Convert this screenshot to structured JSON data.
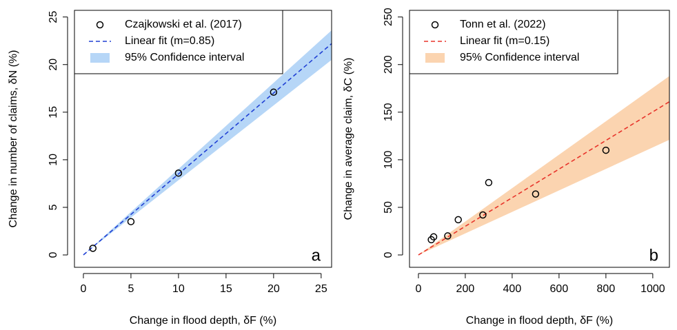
{
  "chart_data": [
    {
      "type": "scatter",
      "panel_label": "a",
      "x_label": "Change in flood depth, δF (%)",
      "y_label": "Change in number of claims, δN (%)",
      "xlim": [
        -0.94,
        26.1
      ],
      "ylim": [
        -1.3,
        25.7
      ],
      "xticks": [
        0,
        5,
        10,
        15,
        20,
        25
      ],
      "yticks": [
        0,
        5,
        10,
        15,
        20,
        25
      ],
      "legend": "top-left",
      "series": [
        {
          "name": "Czajkowski et al. (2017)",
          "style": "points",
          "color": "#000000",
          "x": [
            1,
            5,
            10,
            20
          ],
          "values": [
            0.7,
            3.5,
            8.6,
            17.1
          ]
        },
        {
          "name": "Linear fit (m=0.85)",
          "style": "dashed",
          "color": "#1f3fd4",
          "x": [
            0,
            26.1
          ],
          "values": [
            0,
            22.2
          ]
        },
        {
          "name": "95% Confidence interval",
          "style": "band",
          "color": "#b6d6f7",
          "x": [
            0,
            26.1
          ],
          "lower": [
            0,
            20.5
          ],
          "upper": [
            0,
            23.6
          ]
        }
      ]
    },
    {
      "type": "scatter",
      "panel_label": "b",
      "x_label": "Change in flood depth, δF (%)",
      "y_label": "Change in average claim, δC (%)",
      "xlim": [
        -38,
        1071
      ],
      "ylim": [
        -13,
        257
      ],
      "xticks": [
        0,
        200,
        400,
        600,
        800,
        1000
      ],
      "yticks": [
        0,
        50,
        100,
        150,
        200,
        250
      ],
      "legend": "top-left",
      "series": [
        {
          "name": "Tonn et al. (2022)",
          "style": "points",
          "color": "#000000",
          "x": [
            55,
            65,
            125,
            170,
            275,
            300,
            500,
            800
          ],
          "values": [
            16,
            19,
            20,
            37,
            42,
            76,
            64,
            110
          ]
        },
        {
          "name": "Linear fit (m=0.15)",
          "style": "dashed",
          "color": "#e8332a",
          "x": [
            0,
            1071
          ],
          "values": [
            0,
            161
          ]
        },
        {
          "name": "95% Confidence interval",
          "style": "band",
          "color": "#fbd4b0",
          "x": [
            0,
            1071
          ],
          "lower": [
            0,
            121
          ],
          "upper": [
            0,
            188
          ]
        }
      ]
    }
  ]
}
